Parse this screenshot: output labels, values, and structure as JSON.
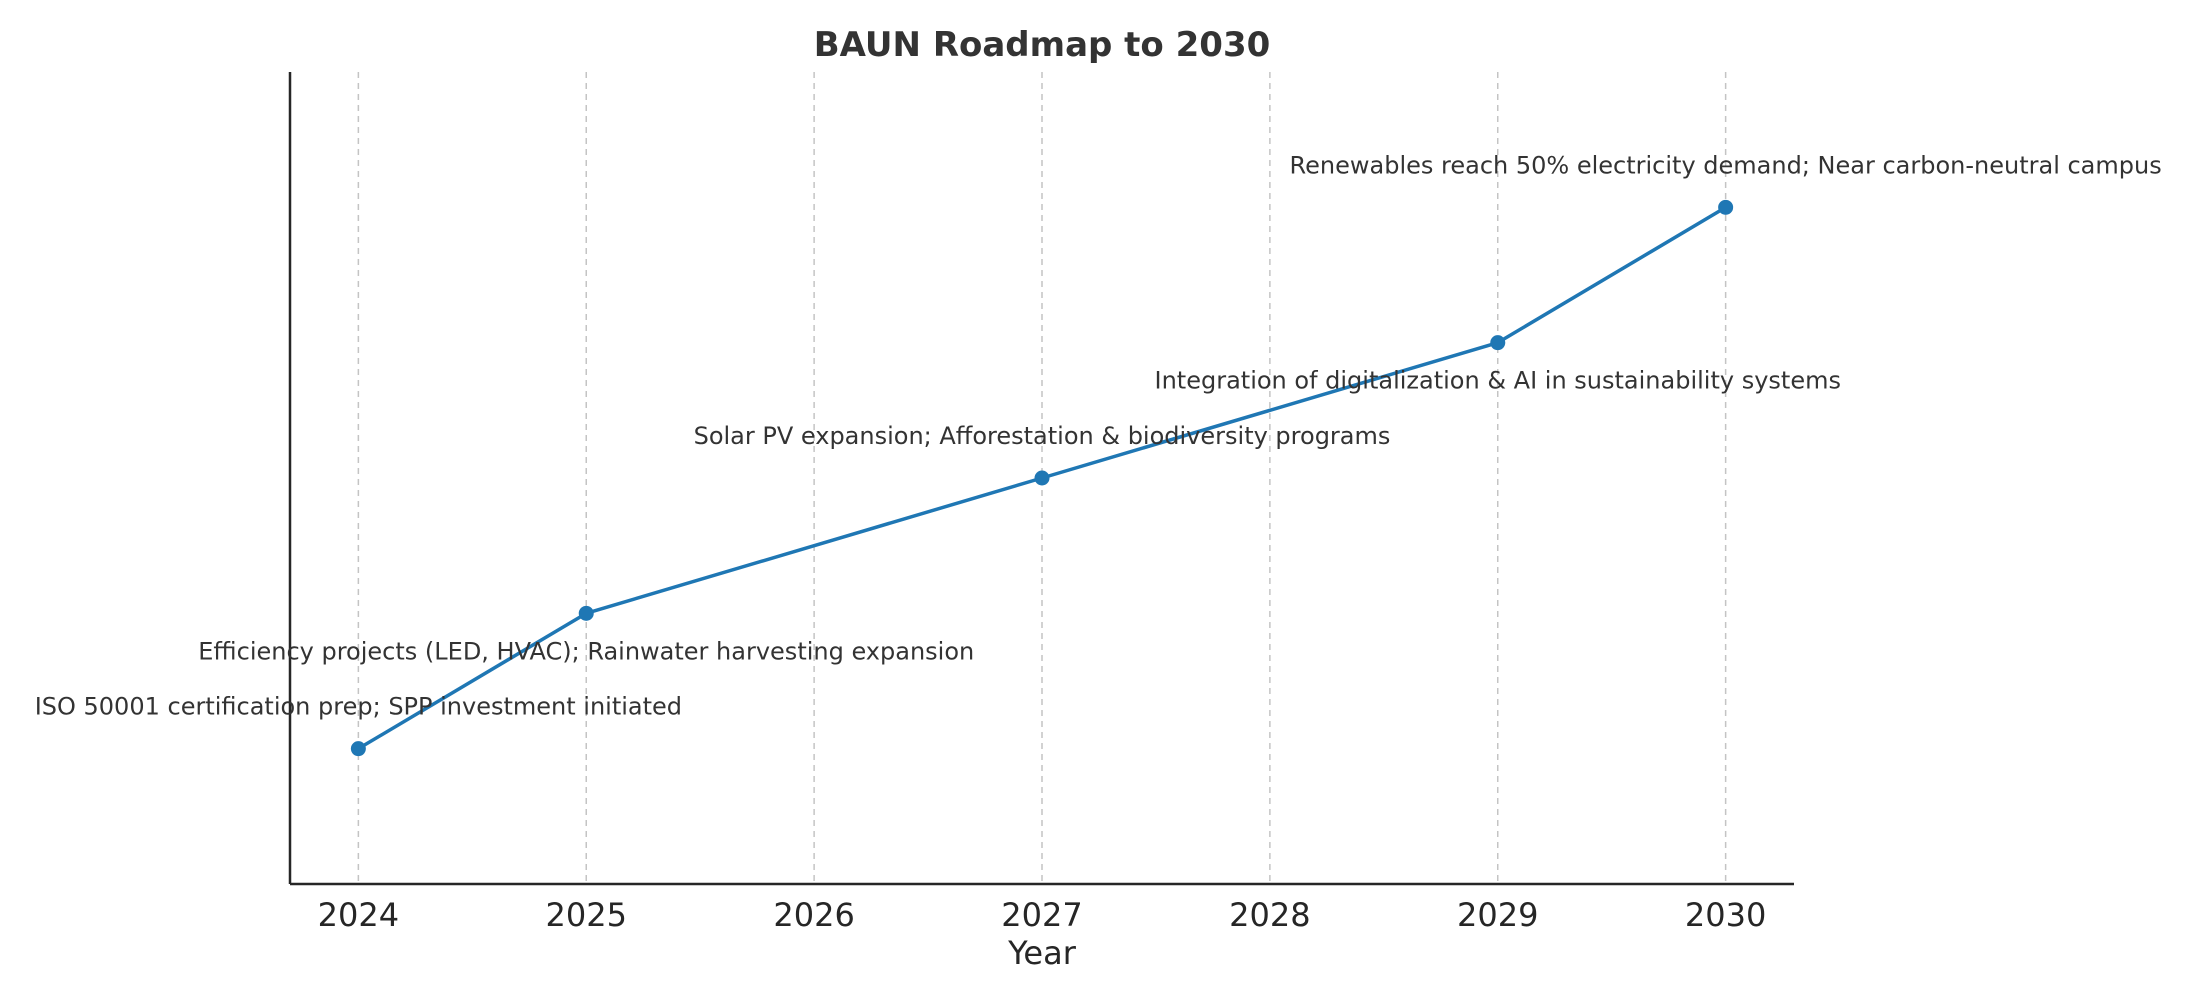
{
  "chart_data": {
    "type": "line",
    "title": "BAUN Roadmap to 2030",
    "xlabel": "Year",
    "ylabel": "",
    "xlim": [
      2023.7,
      2030.3
    ],
    "ylim": [
      0,
      6
    ],
    "x_ticks": [
      2024,
      2025,
      2026,
      2027,
      2028,
      2029,
      2030
    ],
    "grid": "vertical dashed",
    "y_ticks_visible": false,
    "series": [
      {
        "color": "#1f77b4",
        "points": [
          {
            "x": 2024,
            "y": 1,
            "label": "ISO 50001 certification prep; SPP investment initiated",
            "label_side": "above"
          },
          {
            "x": 2025,
            "y": 2,
            "label": "Efficiency projects (LED, HVAC); Rainwater harvesting expansion",
            "label_side": "below"
          },
          {
            "x": 2027,
            "y": 3,
            "label": "Solar PV expansion; Afforestation & biodiversity programs",
            "label_side": "above"
          },
          {
            "x": 2029,
            "y": 4,
            "label": "Integration of digitalization & AI in sustainability systems",
            "label_side": "below"
          },
          {
            "x": 2030,
            "y": 5,
            "label": "Renewables reach 50% electricity demand; Near carbon-neutral campus",
            "label_side": "above"
          }
        ]
      }
    ]
  }
}
